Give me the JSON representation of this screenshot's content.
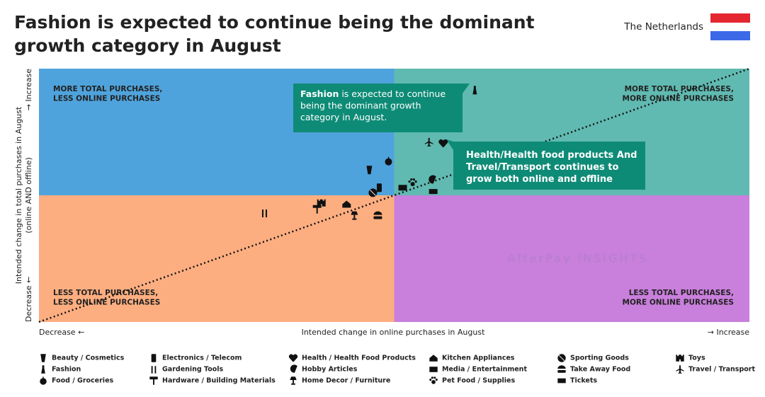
{
  "chart_data": {
    "type": "scatter",
    "title": [
      "Fashion is expected to continue being the dominant",
      "growth category in August"
    ],
    "country": "The Netherlands",
    "xlabel": "Intended change in online purchases in August",
    "x_low": "Decrease ←",
    "x_high": "→ Increase",
    "ylabel": [
      "Intended change in total purchases in August",
      "(online AND offline)"
    ],
    "y_low": "Decrease ←",
    "y_high": "→ Increase",
    "xlim": [
      -100,
      100
    ],
    "ylim": [
      -100,
      100
    ],
    "quadrants": [
      {
        "label": [
          "MORE TOTAL PURCHASES,",
          "LESS ONLINE PURCHASES"
        ],
        "color": "#4fa3dc"
      },
      {
        "label": [
          "MORE TOTAL PURCHASES,",
          "MORE ONLINE PURCHASES"
        ],
        "color": "#60bab1"
      },
      {
        "label": [
          "LESS TOTAL PURCHASES,",
          "LESS ONLINE PURCHASES"
        ],
        "color": "#fdae80"
      },
      {
        "label": [
          "LESS TOTAL PURCHASES,",
          "MORE ONLINE PURCHASES"
        ],
        "color": "#c97fdc"
      }
    ],
    "watermark": "AfterPay INSIGHTS",
    "annotations": [
      {
        "lines": [
          [
            "Fashion",
            " is expected to continue"
          ],
          [
            "being the dominant growth"
          ],
          [
            "category in August."
          ]
        ]
      },
      {
        "lines": [
          [
            "Health/Health food products And"
          ],
          [
            "Travel/Transport continues to"
          ],
          [
            "grow both online and offline"
          ]
        ]
      }
    ],
    "series": [
      {
        "name": "Beauty / Cosmetics",
        "x": -7,
        "y": 20
      },
      {
        "name": "Fashion",
        "x": 22.7,
        "y": 83
      },
      {
        "name": "Food / Groceries",
        "x": -1.6,
        "y": 27
      },
      {
        "name": "Electronics / Telecom",
        "x": -4.2,
        "y": 6
      },
      {
        "name": "Gardening Tools",
        "x": -36.5,
        "y": -14
      },
      {
        "name": "Hardware / Building Materials",
        "x": -21.7,
        "y": -11
      },
      {
        "name": "Health / Health Food Products",
        "x": 13.8,
        "y": 41
      },
      {
        "name": "Hobby Articles",
        "x": 10.6,
        "y": 12
      },
      {
        "name": "Home Decor / Furniture",
        "x": -11.2,
        "y": -16
      },
      {
        "name": "Kitchen Appliances",
        "x": -13.4,
        "y": -7
      },
      {
        "name": "Media / Entertainment",
        "x": 2.4,
        "y": 6
      },
      {
        "name": "Pet Food / Supplies",
        "x": 5.2,
        "y": 10
      },
      {
        "name": "Sporting Goods",
        "x": -6,
        "y": 2
      },
      {
        "name": "Take Away Food",
        "x": -4.6,
        "y": -16
      },
      {
        "name": "Tickets",
        "x": 11,
        "y": 3
      },
      {
        "name": "Toys",
        "x": -20.5,
        "y": -6
      },
      {
        "name": "Travel / Transport",
        "x": 9.8,
        "y": 42
      }
    ]
  }
}
